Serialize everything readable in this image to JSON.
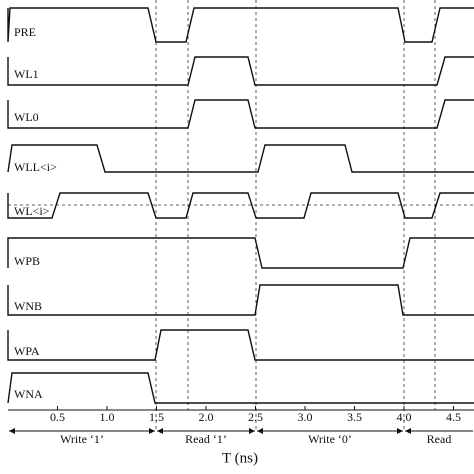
{
  "signals": [
    "PRE",
    "WL1",
    "WL0",
    "WLL<i>",
    "WL<i>",
    "WPB",
    "WNB",
    "WPA",
    "WNA"
  ],
  "axis": {
    "ticks": [
      "0.5",
      "1.0",
      "1.5",
      "2.0",
      "2.5",
      "3.0",
      "3.5",
      "4.0",
      "4.5"
    ],
    "label": "T (ns)"
  },
  "phases": [
    "Write ‘1’",
    "Read ‘1’",
    "Write ‘0’",
    "Read"
  ]
}
